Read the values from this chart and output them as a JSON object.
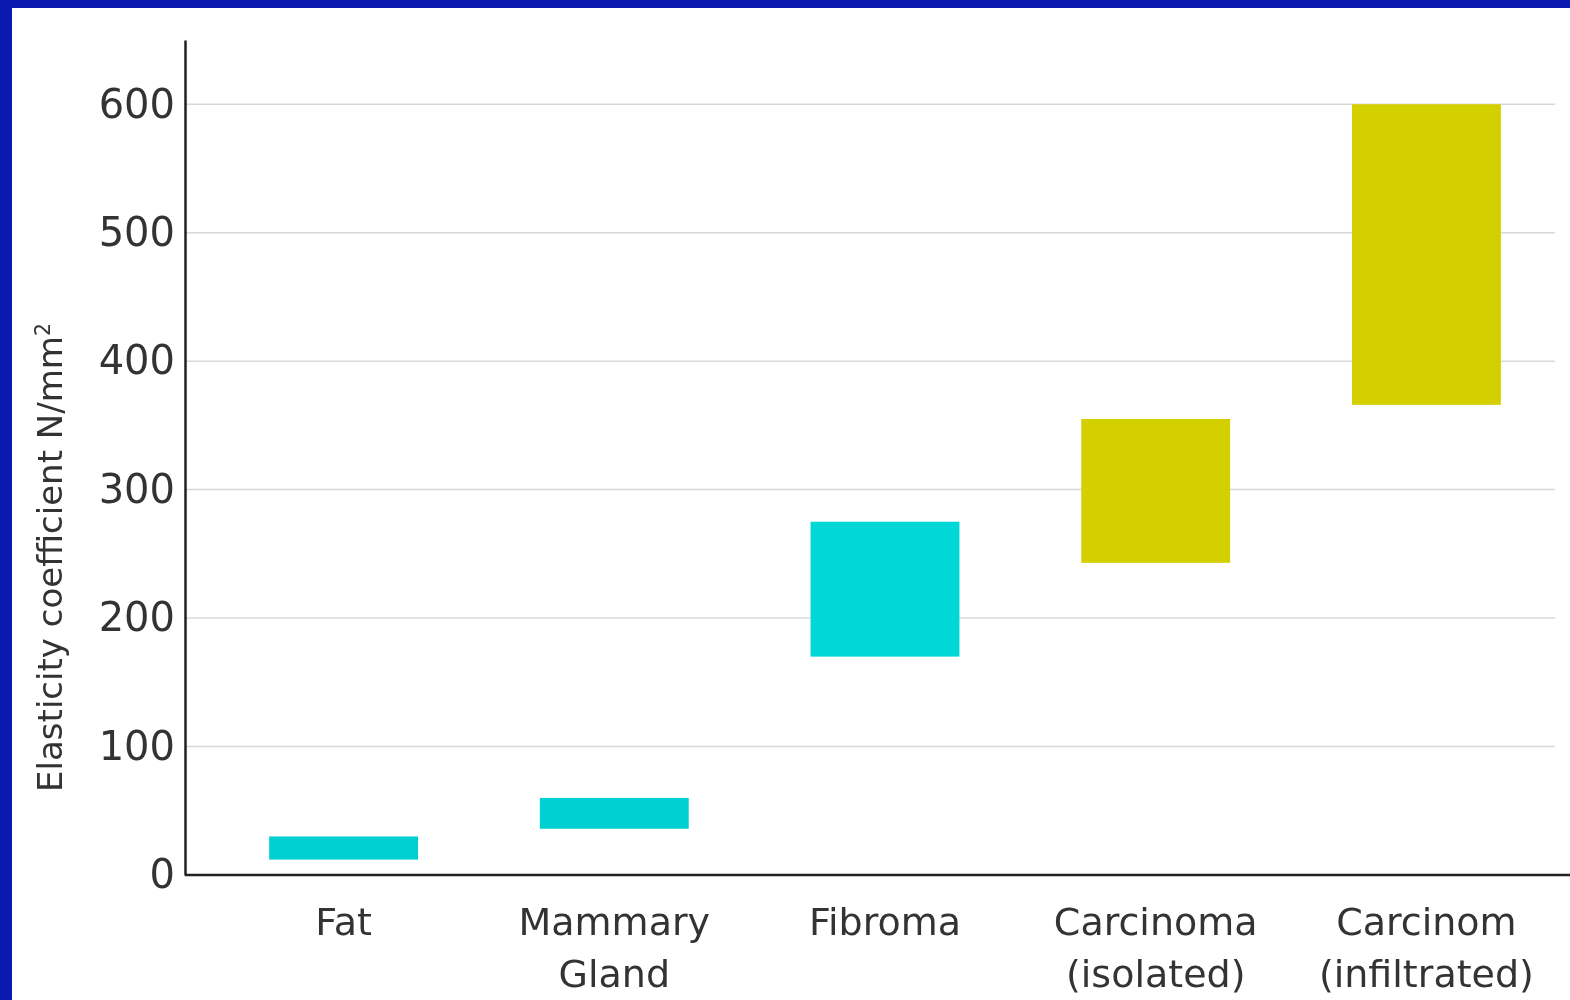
{
  "chart_data": {
    "type": "bar",
    "ylabel": "Elasticity coefficient N/mm$^{2}$",
    "categories": [
      "Fat",
      "Mammary Gland",
      "Fibroma",
      "Carcinoma (isolated)",
      "Carcinom (infiltrated)"
    ],
    "base": [
      12,
      36,
      170,
      243,
      366
    ],
    "values": [
      18,
      24,
      105,
      112,
      234
    ],
    "colors": [
      "#00d0d0",
      "#00d0d0",
      "#00d8d8",
      "#d4d000",
      "#d4d000"
    ],
    "ylim": [
      0,
      650
    ],
    "yticks": [
      0,
      100,
      200,
      300,
      400,
      500,
      600
    ],
    "grid": "y"
  }
}
